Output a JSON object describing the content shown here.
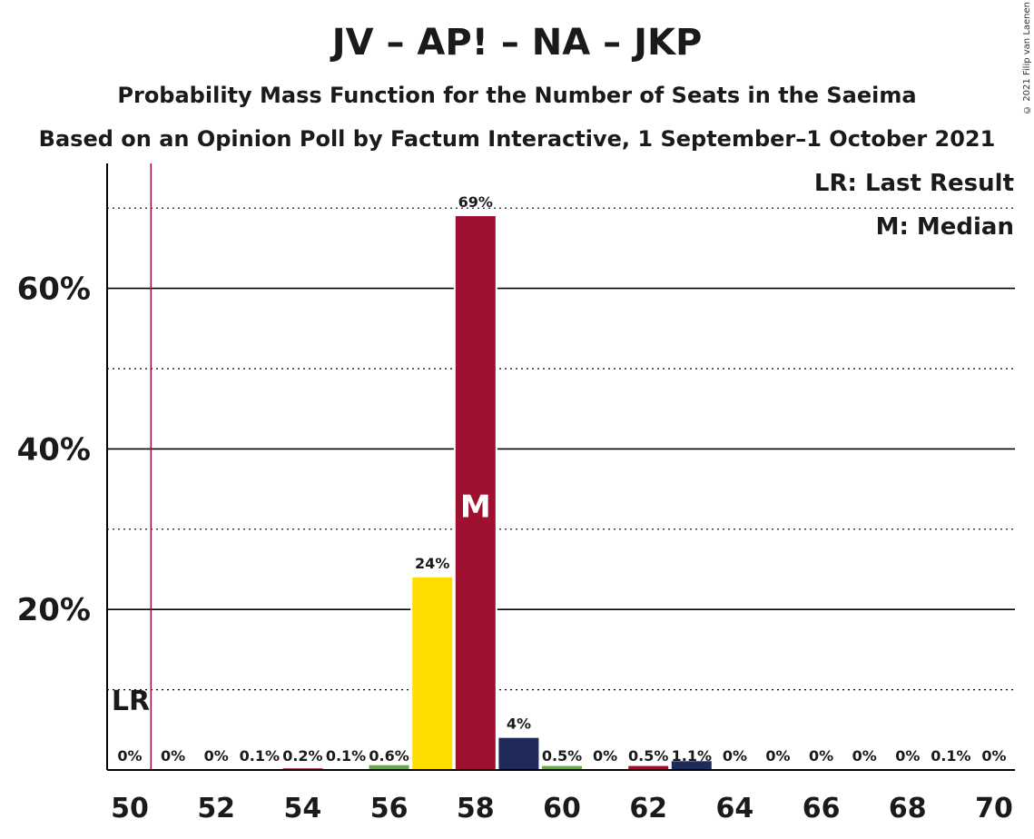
{
  "chart_data": {
    "type": "bar",
    "title": "JV – AP! – NA – JKP",
    "subtitle": "Probability Mass Function for the Number of Seats in the Saeima",
    "subtitle2": "Based on an Opinion Poll by Factum Interactive, 1 September–1 October 2021",
    "copyright": "© 2021 Filip van Laenen",
    "x": [
      50,
      51,
      52,
      53,
      54,
      55,
      56,
      57,
      58,
      59,
      60,
      61,
      62,
      63,
      64,
      65,
      66,
      67,
      68,
      69,
      70
    ],
    "values": [
      0,
      0,
      0,
      0.1,
      0.2,
      0.1,
      0.6,
      24,
      69,
      4,
      0.5,
      0,
      0.5,
      1.1,
      0,
      0,
      0,
      0,
      0,
      0.1,
      0
    ],
    "labels": [
      "0%",
      "0%",
      "0%",
      "0.1%",
      "0.2%",
      "0.1%",
      "0.6%",
      "24%",
      "69%",
      "4%",
      "0.5%",
      "0%",
      "0.5%",
      "1.1%",
      "0%",
      "0%",
      "0%",
      "0%",
      "0%",
      "0.1%",
      "0%"
    ],
    "bar_colors": [
      "#9e1030",
      "#9e1030",
      "#9e1030",
      "#9e1030",
      "#9e1030",
      "#9e1030",
      "#6aa84f",
      "#ffdd00",
      "#9e1030",
      "#1f2a5a",
      "#6aa84f",
      "#9e1030",
      "#9e1030",
      "#1f2a5a",
      "#9e1030",
      "#9e1030",
      "#9e1030",
      "#9e1030",
      "#9e1030",
      "#9e1030",
      "#9e1030"
    ],
    "xticks": [
      50,
      52,
      54,
      56,
      58,
      60,
      62,
      64,
      66,
      68,
      70
    ],
    "yticks": [
      20,
      40,
      60
    ],
    "ytick_labels": [
      "20%",
      "40%",
      "60%"
    ],
    "ylim": [
      0,
      75
    ],
    "median_seat": 58,
    "median_marker": "M",
    "last_result_seat": 50,
    "last_result_marker": "LR",
    "last_result_line_color": "#9e1030",
    "legend": [
      "LR: Last Result",
      "M: Median"
    ]
  }
}
